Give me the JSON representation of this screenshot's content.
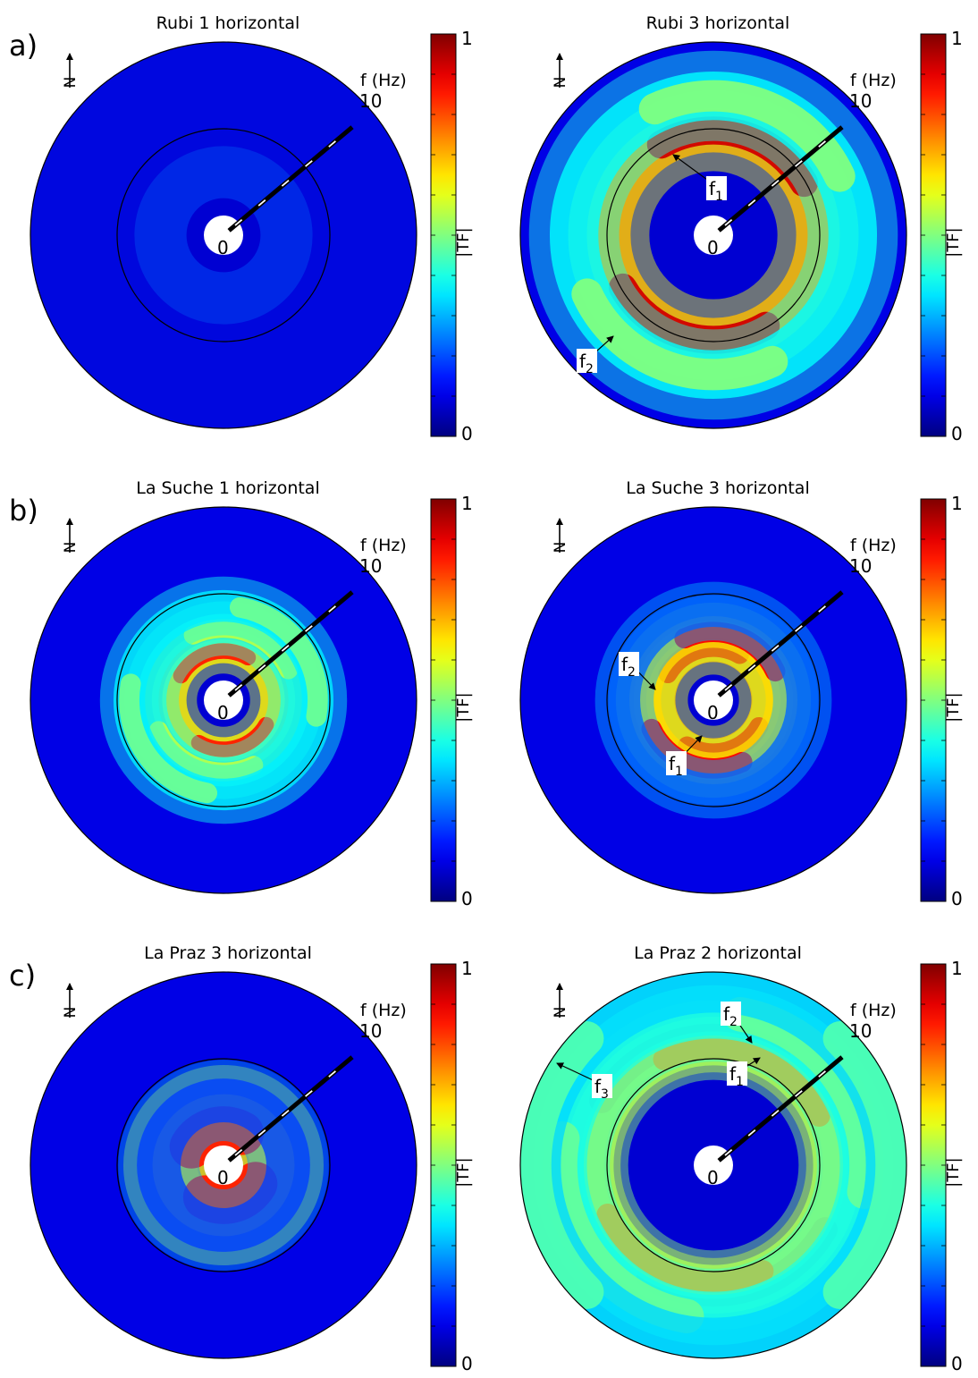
{
  "figure": {
    "rows": [
      {
        "label": "a)",
        "panels": [
          {
            "title": "Rubi 1 horizontal",
            "north": "N",
            "f_axis_label": "f (Hz)",
            "f_axis_max": "10",
            "f_axis_min": "0",
            "annotations": [],
            "rings": [
              {
                "freq": 7.5,
                "amp": 0.12,
                "width": 0.5
              }
            ]
          },
          {
            "title": "Rubi 3 horizontal",
            "north": "N",
            "f_axis_label": "f (Hz)",
            "f_axis_max": "10",
            "f_axis_min": "0",
            "annotations": [
              {
                "sym": "f",
                "sub": "1"
              },
              {
                "sym": "f",
                "sub": "2"
              }
            ],
            "rings": [
              {
                "freq": 4.9,
                "amp": 0.92,
                "width": 0.18
              },
              {
                "freq": 6.9,
                "amp": 0.5,
                "width": 0.2
              }
            ]
          }
        ],
        "colorbar": {
          "label": "|TF|",
          "max": "1",
          "min": "0"
        }
      },
      {
        "label": "b)",
        "panels": [
          {
            "title": "La Suche 1 horizontal",
            "north": "N",
            "f_axis_label": "f (Hz)",
            "f_axis_max": "10",
            "f_axis_min": "0",
            "annotations": [],
            "rings": [
              {
                "freq": 1.7,
                "amp": 0.85,
                "width": 0.1
              },
              {
                "freq": 3.0,
                "amp": 0.55,
                "width": 0.12
              },
              {
                "freq": 4.3,
                "amp": 0.48,
                "width": 0.13
              }
            ]
          },
          {
            "title": "La Suche 3 horizontal",
            "north": "N",
            "f_axis_label": "f (Hz)",
            "f_axis_max": "10",
            "f_axis_min": "0",
            "annotations": [
              {
                "sym": "f",
                "sub": "2"
              },
              {
                "sym": "f",
                "sub": "1"
              }
            ],
            "rings": [
              {
                "freq": 1.9,
                "amp": 0.9,
                "width": 0.12
              },
              {
                "freq": 2.8,
                "amp": 0.88,
                "width": 0.13
              },
              {
                "freq": 4.0,
                "amp": 0.3,
                "width": 0.13
              }
            ]
          }
        ],
        "colorbar": {
          "label": "|TF|",
          "max": "1",
          "min": "0"
        }
      },
      {
        "label": "c)",
        "panels": [
          {
            "title": "La Praz 3 horizontal",
            "north": "N",
            "f_axis_label": "f (Hz)",
            "f_axis_max": "10",
            "f_axis_min": "0",
            "annotations": [],
            "rings": [
              {
                "freq": 1.0,
                "amp": 0.85,
                "width": 0.28
              },
              {
                "freq": 2.6,
                "amp": 0.25,
                "width": 0.18
              }
            ]
          },
          {
            "title": "La Praz 2 horizontal",
            "north": "N",
            "f_axis_label": "f (Hz)",
            "f_axis_max": "10",
            "f_axis_min": "0",
            "annotations": [
              {
                "sym": "f",
                "sub": "2"
              },
              {
                "sym": "f",
                "sub": "1"
              },
              {
                "sym": "f",
                "sub": "3"
              }
            ],
            "rings": [
              {
                "freq": 6.3,
                "amp": 0.92,
                "width": 0.16
              },
              {
                "freq": 5.6,
                "amp": 0.72,
                "width": 0.14
              },
              {
                "freq": 7.7,
                "amp": 0.55,
                "width": 0.22
              },
              {
                "freq": 9.2,
                "amp": 0.45,
                "width": 0.22
              }
            ]
          }
        ],
        "colorbar": {
          "label": "|TF|",
          "max": "1",
          "min": "0"
        }
      }
    ]
  },
  "chart_data": {
    "type": "heatmap",
    "projection": "polar",
    "radial_axis": {
      "label": "f (Hz)",
      "range": [
        0,
        10
      ],
      "reference_ring": 5
    },
    "color_scale": {
      "label": "|TF|",
      "range": [
        0,
        1
      ],
      "colormap": "jet"
    },
    "panels": [
      {
        "title": "Rubi 1 horizontal",
        "peaks": []
      },
      {
        "title": "Rubi 3 horizontal",
        "peaks": [
          "f1",
          "f2"
        ]
      },
      {
        "title": "La Suche 1 horizontal",
        "peaks": []
      },
      {
        "title": "La Suche 3 horizontal",
        "peaks": [
          "f1",
          "f2"
        ]
      },
      {
        "title": "La Praz 3 horizontal",
        "peaks": []
      },
      {
        "title": "La Praz 2 horizontal",
        "peaks": [
          "f1",
          "f2",
          "f3"
        ]
      }
    ]
  }
}
